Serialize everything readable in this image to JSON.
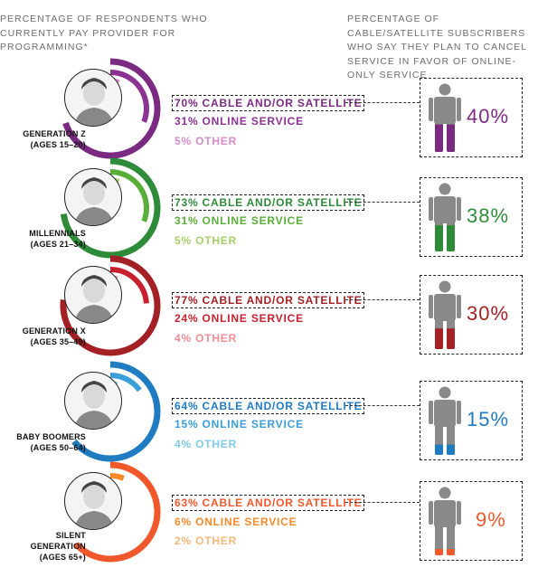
{
  "header_left": "PERCENTAGE OF RESPONDENTS WHO CURRENTLY PAY PROVIDER FOR PROGRAMMING*",
  "header_right": "PERCENTAGE OF CABLE/SATELLITE SUBSCRIBERS WHO SAY THEY PLAN TO CANCEL SERVICE IN FAVOR OF ONLINE-ONLY SERVICE",
  "generations": [
    {
      "name": "GENERATION Z",
      "ages": "(AGES 15–20)",
      "colors": {
        "dark": "#7b2a82",
        "mid": "#8b3391",
        "light": "#d48bc9"
      },
      "stats": [
        "70% CABLE AND/OR SATELLITE",
        "31% ONLINE SERVICE",
        "5% OTHER"
      ],
      "cancel_label": "40%"
    },
    {
      "name": "MILLENNIALS",
      "ages": "(AGES 21–34)",
      "colors": {
        "dark": "#2e8b3a",
        "mid": "#5aae3a",
        "light": "#a7cf6a"
      },
      "stats": [
        "73% CABLE AND/OR SATELLITE",
        "31% ONLINE SERVICE",
        "5% OTHER"
      ],
      "cancel_label": "38%"
    },
    {
      "name": "GENERATION X",
      "ages": "(AGES 35–49)",
      "colors": {
        "dark": "#a32025",
        "mid": "#c8202f",
        "light": "#ef8d93"
      },
      "stats": [
        "77% CABLE AND/OR SATELLITE",
        "24% ONLINE SERVICE",
        "4% OTHER"
      ],
      "cancel_label": "30%"
    },
    {
      "name": "BABY BOOMERS",
      "ages": "(AGES 50–64)",
      "colors": {
        "dark": "#1f7cc0",
        "mid": "#3a9fd8",
        "light": "#7fcbe9"
      },
      "stats": [
        "64% CABLE AND/OR SATELLITE",
        "15% ONLINE SERVICE",
        "4% OTHER"
      ],
      "cancel_label": "15%"
    },
    {
      "name": "SILENT GENERATION",
      "ages": "(AGES 65+)",
      "colors": {
        "dark": "#f0582b",
        "mid": "#f58a2a",
        "light": "#f6b77a"
      },
      "stats": [
        "63% CABLE AND/OR SATELLITE",
        "6% ONLINE SERVICE",
        "2% OTHER"
      ],
      "cancel_label": "9%"
    }
  ],
  "chart_data": {
    "type": "bar",
    "categories": [
      "GENERATION Z",
      "MILLENNIALS",
      "GENERATION X",
      "BABY BOOMERS",
      "SILENT GENERATION"
    ],
    "series": [
      {
        "name": "CABLE AND/OR SATELLITE",
        "values": [
          70,
          73,
          77,
          64,
          63
        ]
      },
      {
        "name": "ONLINE SERVICE",
        "values": [
          31,
          31,
          24,
          15,
          6
        ]
      },
      {
        "name": "OTHER",
        "values": [
          5,
          5,
          4,
          4,
          2
        ]
      }
    ],
    "cancel_values": [
      40,
      38,
      30,
      15,
      9
    ],
    "title": "PERCENTAGE OF RESPONDENTS WHO CURRENTLY PAY PROVIDER FOR PROGRAMMING*",
    "title_right": "PERCENTAGE OF CABLE/SATELLITE SUBSCRIBERS WHO SAY THEY PLAN TO CANCEL SERVICE IN FAVOR OF ONLINE-ONLY SERVICE"
  }
}
